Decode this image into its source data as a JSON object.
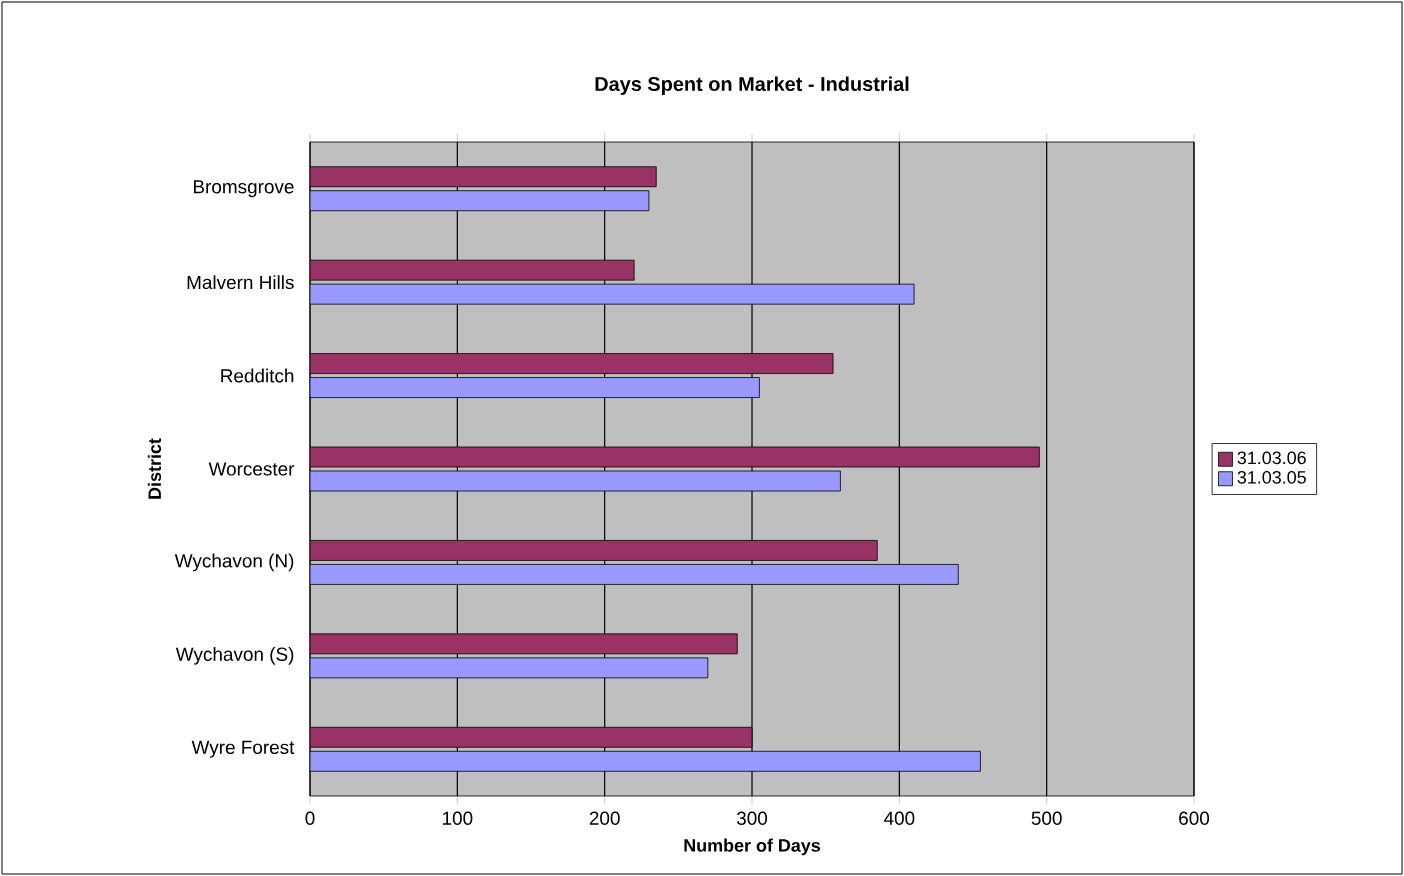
{
  "chart_data": {
    "type": "bar",
    "orientation": "horizontal",
    "title": "Days Spent on Market - Industrial",
    "xlabel": "Number of Days",
    "ylabel": "District",
    "categories": [
      "Bromsgrove",
      "Malvern Hills",
      "Redditch",
      "Worcester",
      "Wychavon (N)",
      "Wychavon (S)",
      "Wyre Forest"
    ],
    "series": [
      {
        "name": "31.03.06",
        "color": "#993366",
        "values": [
          235,
          220,
          355,
          495,
          385,
          290,
          300
        ]
      },
      {
        "name": "31.03.05",
        "color": "#9999ff",
        "values": [
          230,
          410,
          305,
          360,
          440,
          270,
          455
        ]
      }
    ],
    "xlim": [
      0,
      600
    ],
    "xticks": [
      0,
      100,
      200,
      300,
      400,
      500,
      600
    ],
    "grid": "x",
    "legend": "right"
  }
}
